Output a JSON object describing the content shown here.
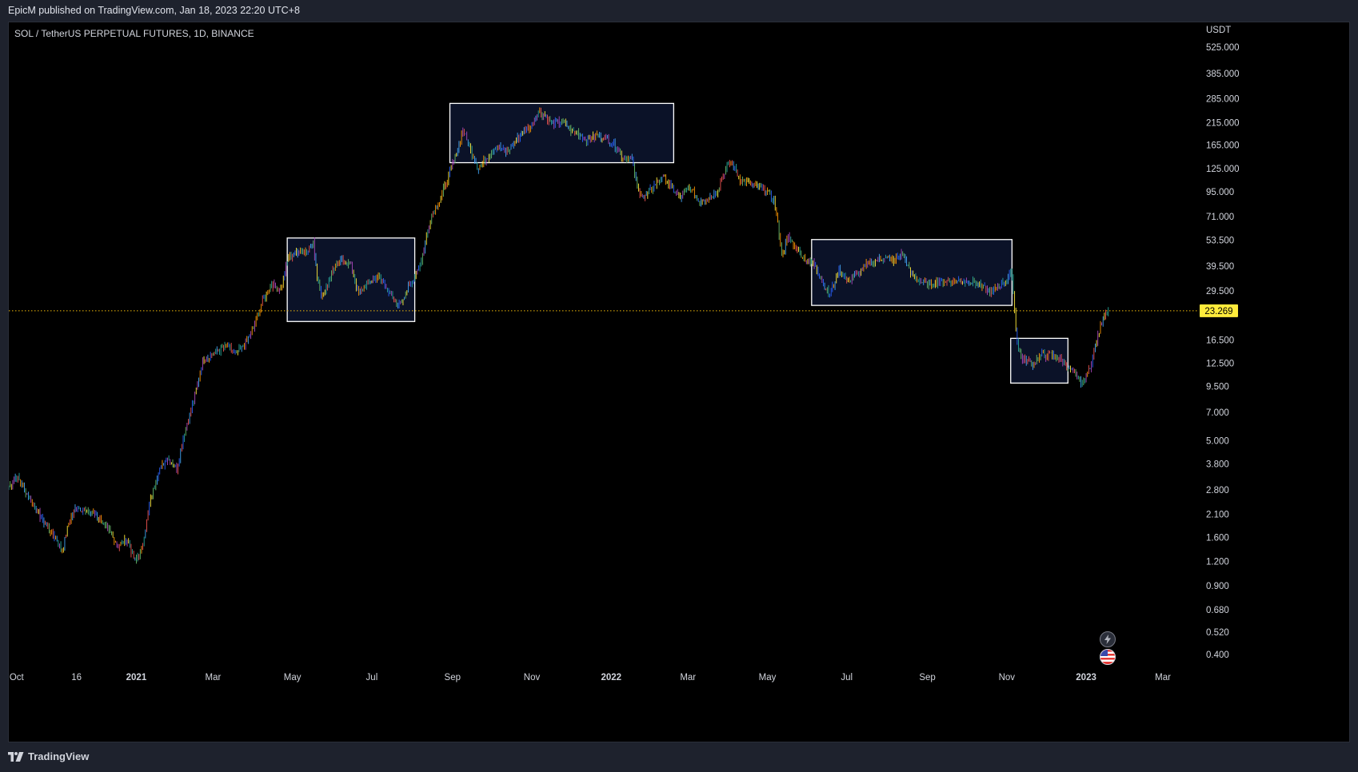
{
  "header": {
    "published_text": "EpicM published on TradingView.com, Jan 18, 2023 22:20 UTC+8"
  },
  "chart": {
    "symbol_line": "SOL / TetherUS PERPETUAL FUTURES, 1D, BINANCE",
    "currency_label": "USDT",
    "last_price_label": "23.269",
    "last_price_value": 23.269,
    "colors": {
      "background": "#000000",
      "frame": "#1e222d",
      "last_price_line": "#f0b90b",
      "last_price_badge": "#ffeb3b",
      "box_stroke": "#ffffff",
      "box_fill": "#0b1228",
      "candle_palette": [
        "#26a69a",
        "#ef5350",
        "#ffeb3b",
        "#2962ff",
        "#ab47bc",
        "#66bb6a",
        "#ff9800",
        "#42a5f5"
      ]
    },
    "badges": [
      {
        "name": "lightning-icon",
        "glyph": "⚡"
      },
      {
        "name": "us-flag-icon",
        "glyph": ""
      }
    ]
  },
  "chart_data": {
    "type": "candlestick",
    "title": "SOL / TetherUS PERPETUAL FUTURES, 1D, BINANCE",
    "y_scale": "log",
    "ylim": [
      0.33,
      700
    ],
    "y_ticks": [
      "525.000",
      "385.000",
      "285.000",
      "215.000",
      "165.000",
      "125.000",
      "95.000",
      "71.000",
      "53.500",
      "39.500",
      "29.500",
      "16.500",
      "12.500",
      "9.500",
      "7.000",
      "5.000",
      "3.800",
      "2.800",
      "2.100",
      "1.600",
      "1.200",
      "0.900",
      "0.680",
      "0.520",
      "0.400"
    ],
    "x_ticks": [
      "Oct",
      "16",
      "2021",
      "Mar",
      "May",
      "Jul",
      "Sep",
      "Nov",
      "2022",
      "Mar",
      "May",
      "Jul",
      "Sep",
      "Nov",
      "2023",
      "Mar"
    ],
    "x_start": "2020-09-25",
    "x_end": "2023-03-28",
    "series": [
      {
        "points": [
          [
            "2020-09-25",
            2.9
          ],
          [
            "2020-10-01",
            3.3
          ],
          [
            "2020-10-10",
            2.6
          ],
          [
            "2020-10-20",
            2.0
          ],
          [
            "2020-11-01",
            1.55
          ],
          [
            "2020-11-05",
            1.35
          ],
          [
            "2020-11-10",
            1.9
          ],
          [
            "2020-11-16",
            2.3
          ],
          [
            "2020-11-24",
            2.15
          ],
          [
            "2020-12-01",
            2.1
          ],
          [
            "2020-12-10",
            1.75
          ],
          [
            "2020-12-18",
            1.45
          ],
          [
            "2020-12-25",
            1.55
          ],
          [
            "2020-12-31",
            1.2
          ],
          [
            "2021-01-05",
            1.4
          ],
          [
            "2021-01-12",
            2.5
          ],
          [
            "2021-01-18",
            3.5
          ],
          [
            "2021-01-25",
            4.1
          ],
          [
            "2021-02-01",
            3.6
          ],
          [
            "2021-02-07",
            5.5
          ],
          [
            "2021-02-14",
            8.0
          ],
          [
            "2021-02-21",
            13.0
          ],
          [
            "2021-02-26",
            13.5
          ],
          [
            "2021-03-05",
            14.5
          ],
          [
            "2021-03-12",
            15.5
          ],
          [
            "2021-03-18",
            13.8
          ],
          [
            "2021-03-25",
            15.5
          ],
          [
            "2021-04-01",
            19.0
          ],
          [
            "2021-04-08",
            26.0
          ],
          [
            "2021-04-15",
            32.0
          ],
          [
            "2021-04-22",
            30.0
          ],
          [
            "2021-04-28",
            44.0
          ],
          [
            "2021-05-05",
            47.0
          ],
          [
            "2021-05-12",
            47.0
          ],
          [
            "2021-05-17",
            52.0
          ],
          [
            "2021-05-20",
            35.0
          ],
          [
            "2021-05-24",
            27.0
          ],
          [
            "2021-06-01",
            38.0
          ],
          [
            "2021-06-08",
            42.0
          ],
          [
            "2021-06-15",
            40.0
          ],
          [
            "2021-06-21",
            28.0
          ],
          [
            "2021-06-27",
            32.0
          ],
          [
            "2021-07-05",
            35.0
          ],
          [
            "2021-07-12",
            31.0
          ],
          [
            "2021-07-20",
            24.5
          ],
          [
            "2021-07-25",
            27.0
          ],
          [
            "2021-08-01",
            33.0
          ],
          [
            "2021-08-08",
            42.0
          ],
          [
            "2021-08-15",
            70.0
          ],
          [
            "2021-08-22",
            85.0
          ],
          [
            "2021-08-28",
            110.0
          ],
          [
            "2021-09-04",
            150.0
          ],
          [
            "2021-09-09",
            200.0
          ],
          [
            "2021-09-14",
            160.0
          ],
          [
            "2021-09-21",
            125.0
          ],
          [
            "2021-09-28",
            145.0
          ],
          [
            "2021-10-05",
            165.0
          ],
          [
            "2021-10-12",
            150.0
          ],
          [
            "2021-10-20",
            175.0
          ],
          [
            "2021-10-26",
            195.0
          ],
          [
            "2021-11-01",
            210.0
          ],
          [
            "2021-11-06",
            245.0
          ],
          [
            "2021-11-12",
            230.0
          ],
          [
            "2021-11-18",
            210.0
          ],
          [
            "2021-11-24",
            220.0
          ],
          [
            "2021-12-01",
            195.0
          ],
          [
            "2021-12-07",
            190.0
          ],
          [
            "2021-12-14",
            175.0
          ],
          [
            "2021-12-21",
            185.0
          ],
          [
            "2021-12-28",
            180.0
          ],
          [
            "2022-01-04",
            165.0
          ],
          [
            "2022-01-10",
            142.0
          ],
          [
            "2022-01-17",
            140.0
          ],
          [
            "2022-01-21",
            100.0
          ],
          [
            "2022-01-26",
            88.0
          ],
          [
            "2022-02-02",
            100.0
          ],
          [
            "2022-02-09",
            115.0
          ],
          [
            "2022-02-16",
            100.0
          ],
          [
            "2022-02-23",
            88.0
          ],
          [
            "2022-03-02",
            100.0
          ],
          [
            "2022-03-09",
            85.0
          ],
          [
            "2022-03-16",
            88.0
          ],
          [
            "2022-03-23",
            95.0
          ],
          [
            "2022-03-30",
            125.0
          ],
          [
            "2022-04-03",
            135.0
          ],
          [
            "2022-04-10",
            110.0
          ],
          [
            "2022-04-17",
            105.0
          ],
          [
            "2022-04-24",
            100.0
          ],
          [
            "2022-05-01",
            95.0
          ],
          [
            "2022-05-06",
            85.0
          ],
          [
            "2022-05-09",
            65.0
          ],
          [
            "2022-05-12",
            45.0
          ],
          [
            "2022-05-17",
            55.0
          ],
          [
            "2022-05-24",
            48.0
          ],
          [
            "2022-05-31",
            42.0
          ],
          [
            "2022-06-07",
            40.0
          ],
          [
            "2022-06-13",
            32.0
          ],
          [
            "2022-06-18",
            28.0
          ],
          [
            "2022-06-25",
            38.0
          ],
          [
            "2022-07-02",
            33.0
          ],
          [
            "2022-07-09",
            36.0
          ],
          [
            "2022-07-16",
            40.0
          ],
          [
            "2022-07-23",
            42.0
          ],
          [
            "2022-07-30",
            44.0
          ],
          [
            "2022-08-06",
            42.0
          ],
          [
            "2022-08-13",
            46.0
          ],
          [
            "2022-08-19",
            36.0
          ],
          [
            "2022-08-26",
            33.0
          ],
          [
            "2022-09-02",
            31.5
          ],
          [
            "2022-09-09",
            33.0
          ],
          [
            "2022-09-16",
            33.0
          ],
          [
            "2022-09-23",
            33.0
          ],
          [
            "2022-09-30",
            33.0
          ],
          [
            "2022-10-07",
            32.5
          ],
          [
            "2022-10-14",
            30.5
          ],
          [
            "2022-10-21",
            29.0
          ],
          [
            "2022-10-28",
            32.0
          ],
          [
            "2022-11-05",
            36.0
          ],
          [
            "2022-11-08",
            19.0
          ],
          [
            "2022-11-10",
            14.5
          ],
          [
            "2022-11-14",
            13.0
          ],
          [
            "2022-11-21",
            12.5
          ],
          [
            "2022-11-28",
            13.8
          ],
          [
            "2022-12-05",
            13.8
          ],
          [
            "2022-12-12",
            13.2
          ],
          [
            "2022-12-18",
            12.0
          ],
          [
            "2022-12-25",
            10.5
          ],
          [
            "2022-12-29",
            9.8
          ],
          [
            "2023-01-02",
            11.0
          ],
          [
            "2023-01-06",
            13.5
          ],
          [
            "2023-01-10",
            17.0
          ],
          [
            "2023-01-14",
            22.0
          ],
          [
            "2023-01-18",
            23.269
          ]
        ]
      }
    ],
    "annotations": [
      {
        "type": "rectangle",
        "x_from": "2021-04-27",
        "x_to": "2021-08-03",
        "y_from": 20.5,
        "y_to": 55.0
      },
      {
        "type": "rectangle",
        "x_from": "2021-08-30",
        "x_to": "2022-02-18",
        "y_from": 134.0,
        "y_to": 270.0
      },
      {
        "type": "rectangle",
        "x_from": "2022-06-04",
        "x_to": "2022-11-05",
        "y_from": 24.8,
        "y_to": 54.0
      },
      {
        "type": "rectangle",
        "x_from": "2022-11-04",
        "x_to": "2022-12-18",
        "y_from": 9.9,
        "y_to": 16.8
      }
    ],
    "last_price_line": 23.269
  },
  "footer": {
    "brand": "TradingView"
  }
}
